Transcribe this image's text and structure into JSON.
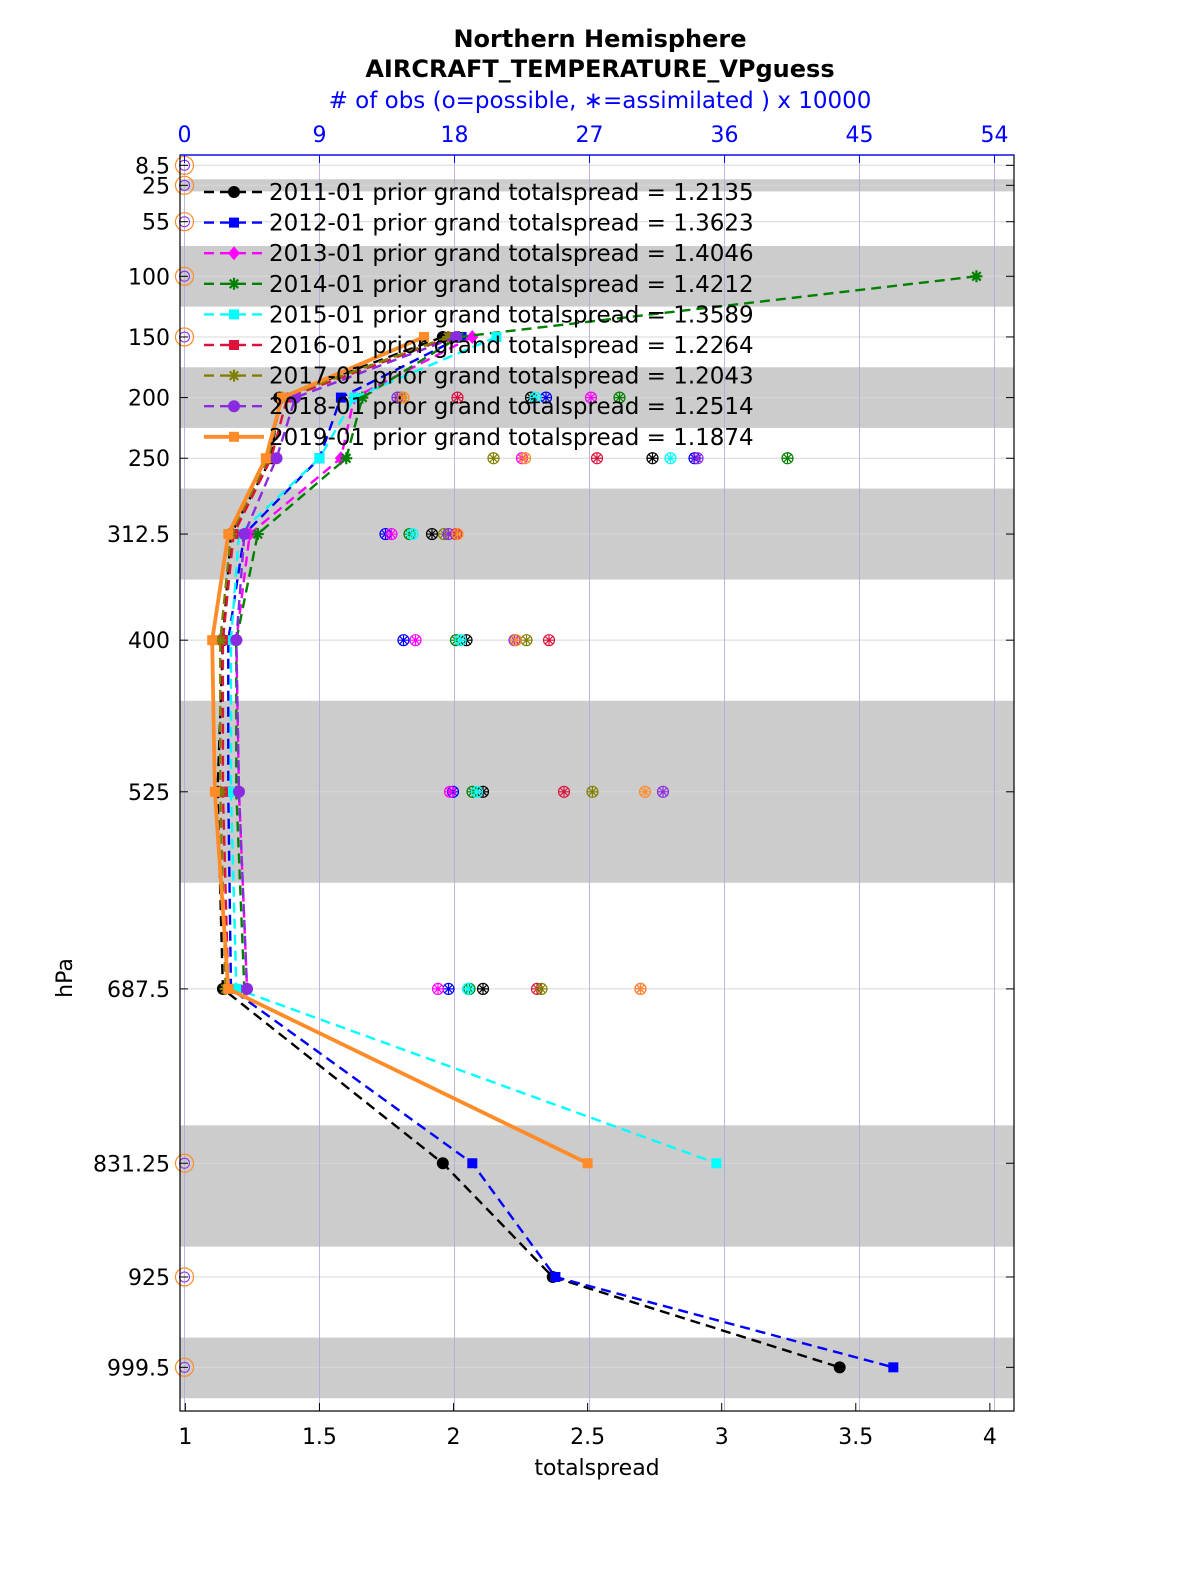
{
  "title_lines": [
    "Northern Hemisphere",
    "AIRCRAFT_TEMPERATURE_VPguess"
  ],
  "top_axis_label": "# of obs (o=possible, ∗=assimilated ) x 10000",
  "chart_data": {
    "type": "line",
    "xlabel": "totalspread",
    "ylabel": "hPa",
    "xlim": [
      0.98,
      4.09
    ],
    "xticks": [
      1,
      1.5,
      2,
      2.5,
      3,
      3.5,
      4
    ],
    "xtick_labels": [
      "1",
      "1.5",
      "2",
      "2.5",
      "3",
      "3.5",
      "4"
    ],
    "top_axis": {
      "ticks": [
        0,
        9,
        18,
        27,
        36,
        45,
        54
      ],
      "tick_labels": [
        "0",
        "9",
        "18",
        "27",
        "36",
        "45",
        "54"
      ],
      "lim": [
        -0.3,
        55.3
      ]
    },
    "levels": [
      8.5,
      25,
      55,
      100,
      150,
      200,
      250,
      312.5,
      400,
      525,
      687.5,
      831.25,
      925,
      999.5
    ],
    "level_labels": [
      "8.5",
      "25",
      "55",
      "100",
      "150",
      "200",
      "250",
      "312.5",
      "400",
      "525",
      "687.5",
      "831.25",
      "925",
      "999.5"
    ],
    "layer_bands": [
      [
        20,
        30
      ],
      [
        75,
        125
      ],
      [
        175,
        225
      ],
      [
        275,
        350
      ],
      [
        450,
        600
      ],
      [
        800,
        900
      ],
      [
        975,
        1025
      ]
    ],
    "grid": true,
    "legend_position": "top-left",
    "series": [
      {
        "name": "2011-01 prior grand totalspread = 1.2135",
        "color": "#000000",
        "marker": "circle",
        "dash": true,
        "levels": [
          150,
          200,
          250,
          312.5,
          400,
          525,
          687.5,
          831.25,
          925,
          999.5
        ],
        "values": [
          1.96,
          1.35,
          1.32,
          1.17,
          1.14,
          1.12,
          1.14,
          1.96,
          2.37,
          3.44
        ]
      },
      {
        "name": "2012-01 prior grand totalspread = 1.3623",
        "color": "#0000ff",
        "marker": "square",
        "dash": true,
        "levels": [
          150,
          200,
          250,
          312.5,
          400,
          525,
          687.5,
          831.25,
          925,
          999.5
        ],
        "values": [
          2.03,
          1.58,
          1.5,
          1.22,
          1.16,
          1.16,
          1.17,
          2.07,
          2.38,
          3.64
        ]
      },
      {
        "name": "2013-01 prior grand totalspread = 1.4046",
        "color": "#ff00ff",
        "marker": "diamond",
        "dash": true,
        "levels": [
          150,
          200,
          250,
          312.5,
          400,
          525,
          687.5
        ],
        "values": [
          2.07,
          1.63,
          1.58,
          1.24,
          1.19,
          1.2,
          1.23
        ]
      },
      {
        "name": "2014-01 prior grand totalspread = 1.4212",
        "color": "#008000",
        "marker": "star",
        "dash": true,
        "levels": [
          100,
          150,
          200,
          250,
          312.5,
          400,
          525,
          687.5
        ],
        "values": [
          3.95,
          2.02,
          1.66,
          1.6,
          1.27,
          1.19,
          1.19,
          1.22
        ]
      },
      {
        "name": "2015-01 prior grand totalspread = 1.3589",
        "color": "#00ffff",
        "marker": "square",
        "dash": true,
        "levels": [
          150,
          200,
          250,
          312.5,
          400,
          525,
          687.5,
          831.25
        ],
        "values": [
          2.16,
          1.63,
          1.5,
          1.2,
          1.17,
          1.17,
          1.19,
          2.98
        ]
      },
      {
        "name": "2016-01 prior grand totalspread = 1.2264",
        "color": "#dc143c",
        "marker": "square",
        "dash": true,
        "levels": [
          150,
          200,
          250,
          312.5,
          400,
          525,
          687.5
        ],
        "values": [
          1.99,
          1.38,
          1.32,
          1.18,
          1.14,
          1.14,
          1.16
        ]
      },
      {
        "name": "2017-01 prior grand totalspread = 1.2043",
        "color": "#808000",
        "marker": "star",
        "dash": true,
        "levels": [
          150,
          200,
          250,
          312.5,
          400,
          525,
          687.5
        ],
        "values": [
          1.98,
          1.36,
          1.31,
          1.17,
          1.13,
          1.13,
          1.15
        ]
      },
      {
        "name": "2018-01 prior grand totalspread = 1.2514",
        "color": "#8a2be2",
        "marker": "circle",
        "dash": true,
        "levels": [
          150,
          200,
          250,
          312.5,
          400,
          525,
          687.5
        ],
        "values": [
          2.01,
          1.41,
          1.34,
          1.22,
          1.19,
          1.2,
          1.23
        ]
      },
      {
        "name": "2019-01 prior grand totalspread = 1.1874",
        "color": "#ff8c28",
        "marker": "square",
        "dash": false,
        "levels": [
          150,
          200,
          250,
          312.5,
          400,
          525,
          687.5,
          831.25
        ],
        "values": [
          1.89,
          1.36,
          1.3,
          1.16,
          1.1,
          1.11,
          1.16,
          2.5
        ]
      }
    ],
    "obs_counts_x10000": [
      {
        "color": "#000000",
        "levels": [
          200,
          250,
          312.5,
          400,
          525,
          687.5
        ],
        "values": [
          23.1,
          31.2,
          16.5,
          18.8,
          19.9,
          19.9
        ]
      },
      {
        "color": "#0000ff",
        "levels": [
          200,
          250,
          312.5,
          400,
          525,
          687.5
        ],
        "values": [
          24.1,
          34.0,
          13.4,
          14.6,
          17.9,
          17.6
        ]
      },
      {
        "color": "#ff00ff",
        "levels": [
          200,
          250,
          312.5,
          400,
          525,
          687.5
        ],
        "values": [
          27.1,
          22.5,
          13.8,
          15.4,
          17.7,
          16.9
        ]
      },
      {
        "color": "#008000",
        "levels": [
          200,
          250,
          312.5,
          400,
          525,
          687.5
        ],
        "values": [
          29.0,
          40.2,
          15.0,
          18.1,
          19.2,
          19.0
        ]
      },
      {
        "color": "#00ffff",
        "levels": [
          200,
          250,
          312.5,
          400,
          525,
          687.5
        ],
        "values": [
          23.4,
          32.4,
          15.2,
          18.4,
          19.5,
          18.9
        ]
      },
      {
        "color": "#dc143c",
        "levels": [
          200,
          250,
          312.5,
          400,
          525,
          687.5
        ],
        "values": [
          18.2,
          27.5,
          18.1,
          24.3,
          25.3,
          23.5
        ]
      },
      {
        "color": "#808000",
        "levels": [
          200,
          250,
          312.5,
          400,
          525,
          687.5
        ],
        "values": [
          14.4,
          20.6,
          17.3,
          22.8,
          27.2,
          23.8
        ]
      },
      {
        "color": "#8a2be2",
        "levels": [
          200,
          250,
          312.5,
          400,
          525,
          687.5
        ],
        "values": [
          14.2,
          34.2,
          17.6,
          22.0,
          31.9,
          30.4
        ]
      },
      {
        "color": "#ff8c28",
        "levels": [
          200,
          250,
          312.5,
          400,
          525,
          687.5
        ],
        "values": [
          14.6,
          22.7,
          18.2,
          22.1,
          30.7,
          30.4
        ]
      }
    ],
    "zero_obs_levels": [
      8.5,
      25,
      55,
      100,
      150,
      831.25,
      925,
      999.5
    ]
  }
}
